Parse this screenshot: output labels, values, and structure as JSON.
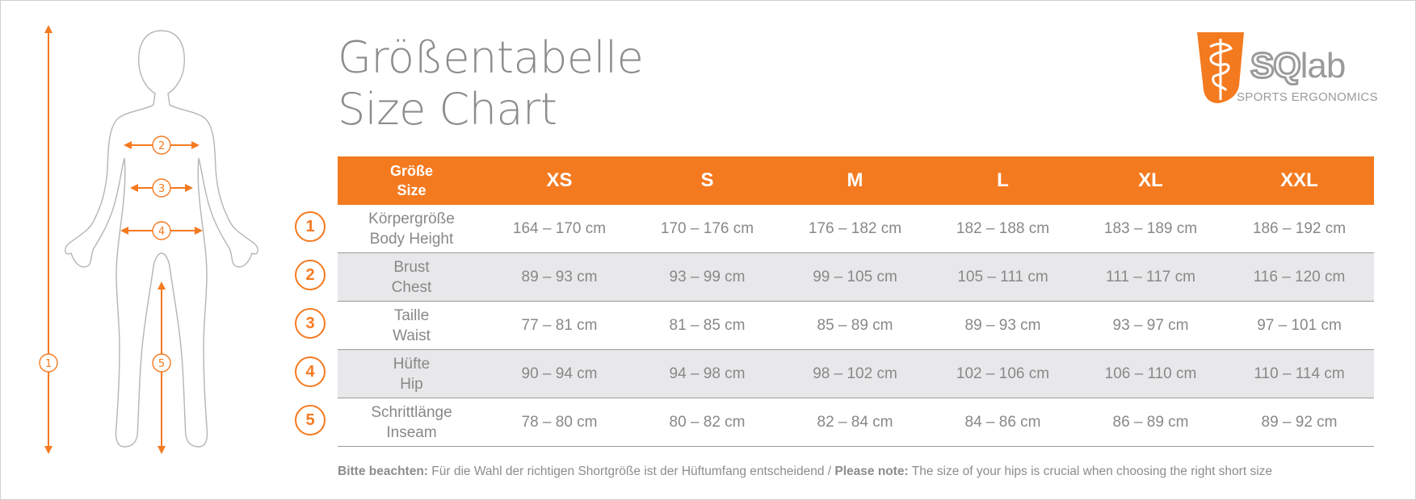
{
  "title": {
    "line1": "Größentabelle",
    "line2": "Size Chart"
  },
  "logo": {
    "mark": "SQ",
    "lab": "lab",
    "tagline": "SPORTS ERGONOMICS",
    "color": "#f47a20"
  },
  "figure": {
    "markers": [
      "1",
      "2",
      "3",
      "4",
      "5"
    ]
  },
  "table": {
    "corner": [
      "Größe",
      "Size"
    ],
    "sizes": [
      "XS",
      "S",
      "M",
      "L",
      "XL",
      "XXL"
    ],
    "rows": [
      {
        "badge": "1",
        "label": [
          "Körpergröße",
          "Body Height"
        ],
        "values": [
          "164 – 170 cm",
          "170 – 176 cm",
          "176 – 182 cm",
          "182 – 188 cm",
          "183 – 189 cm",
          "186 – 192 cm"
        ]
      },
      {
        "badge": "2",
        "label": [
          "Brust",
          "Chest"
        ],
        "values": [
          "89 – 93 cm",
          "93 – 99 cm",
          "99 – 105 cm",
          "105 – 111 cm",
          "111 – 117 cm",
          "116 – 120 cm"
        ]
      },
      {
        "badge": "3",
        "label": [
          "Taille",
          "Waist"
        ],
        "values": [
          "77 – 81 cm",
          "81 – 85 cm",
          "85 – 89 cm",
          "89 – 93 cm",
          "93 – 97 cm",
          "97 – 101 cm"
        ]
      },
      {
        "badge": "4",
        "label": [
          "Hüfte",
          "Hip"
        ],
        "values": [
          "90 – 94 cm",
          "94 – 98 cm",
          "98 – 102 cm",
          "102 – 106 cm",
          "106 – 110 cm",
          "110 – 114 cm"
        ]
      },
      {
        "badge": "5",
        "label": [
          "Schrittlänge",
          "Inseam"
        ],
        "values": [
          "78 – 80 cm",
          "80 – 82 cm",
          "82 – 84 cm",
          "84 – 86 cm",
          "86 – 89 cm",
          "89 – 92 cm"
        ]
      }
    ]
  },
  "note": {
    "de_label": "Bitte beachten:",
    "de_text": " Für die Wahl der richtigen Shortgröße ist der Hüftumfang entscheidend / ",
    "en_label": "Please note:",
    "en_text": " The size of your hips is crucial when choosing the right short size"
  },
  "colors": {
    "accent": "#f47a20",
    "text_gray": "#8c8c8c",
    "row_alt": "#e8e8ea"
  }
}
